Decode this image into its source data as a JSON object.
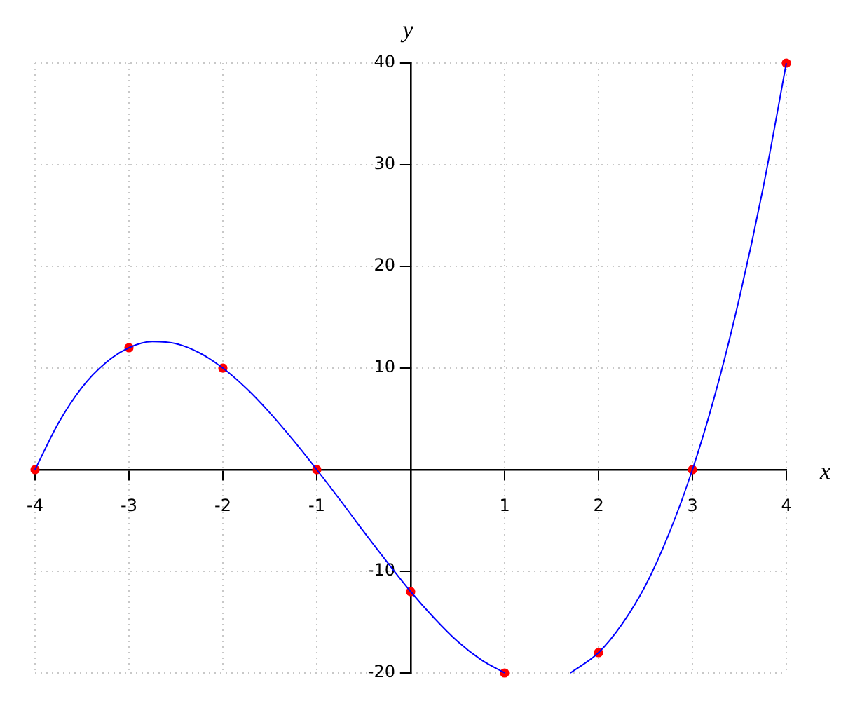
{
  "chart_data": {
    "type": "line",
    "xlabel": "x",
    "ylabel": "y",
    "xlim": [
      -4,
      4
    ],
    "ylim": [
      -20,
      40
    ],
    "xticks": [
      -4,
      -3,
      -2,
      -1,
      1,
      2,
      3,
      4
    ],
    "yticks": [
      -20,
      -10,
      10,
      20,
      30,
      40
    ],
    "grid": true,
    "series": [
      {
        "color": "#0000ff",
        "marker": "none",
        "x": [
          -4,
          -3.75,
          -3.5,
          -3.25,
          -3,
          -2.75,
          -2.5,
          -2.25,
          -2,
          -1.75,
          -1.5,
          -1.25,
          -1,
          -0.75,
          -0.5,
          -0.25,
          0,
          0.25,
          0.5,
          0.75,
          1,
          1.35,
          1.7,
          2,
          2.25,
          2.5,
          2.75,
          3,
          3.25,
          3.5,
          3.75,
          4
        ],
        "values": [
          0,
          4.6,
          8.1,
          10.5,
          12,
          12.6,
          12.4,
          11.5,
          10,
          8,
          5.6,
          2.9,
          0,
          -3,
          -6.1,
          -9.1,
          -12,
          -14.6,
          -16.9,
          -18.7,
          -20,
          null,
          -20,
          -18,
          -15.2,
          -11.4,
          -6.3,
          0,
          7.7,
          16.9,
          27.6,
          40
        ]
      },
      {
        "type": "scatter",
        "color": "#ff0000",
        "marker": "circle",
        "x": [
          -4,
          -3,
          -2,
          -1,
          0,
          1,
          2,
          3,
          4
        ],
        "values": [
          0,
          12,
          10,
          0,
          -12,
          -20,
          -18,
          0,
          40
        ]
      }
    ]
  }
}
